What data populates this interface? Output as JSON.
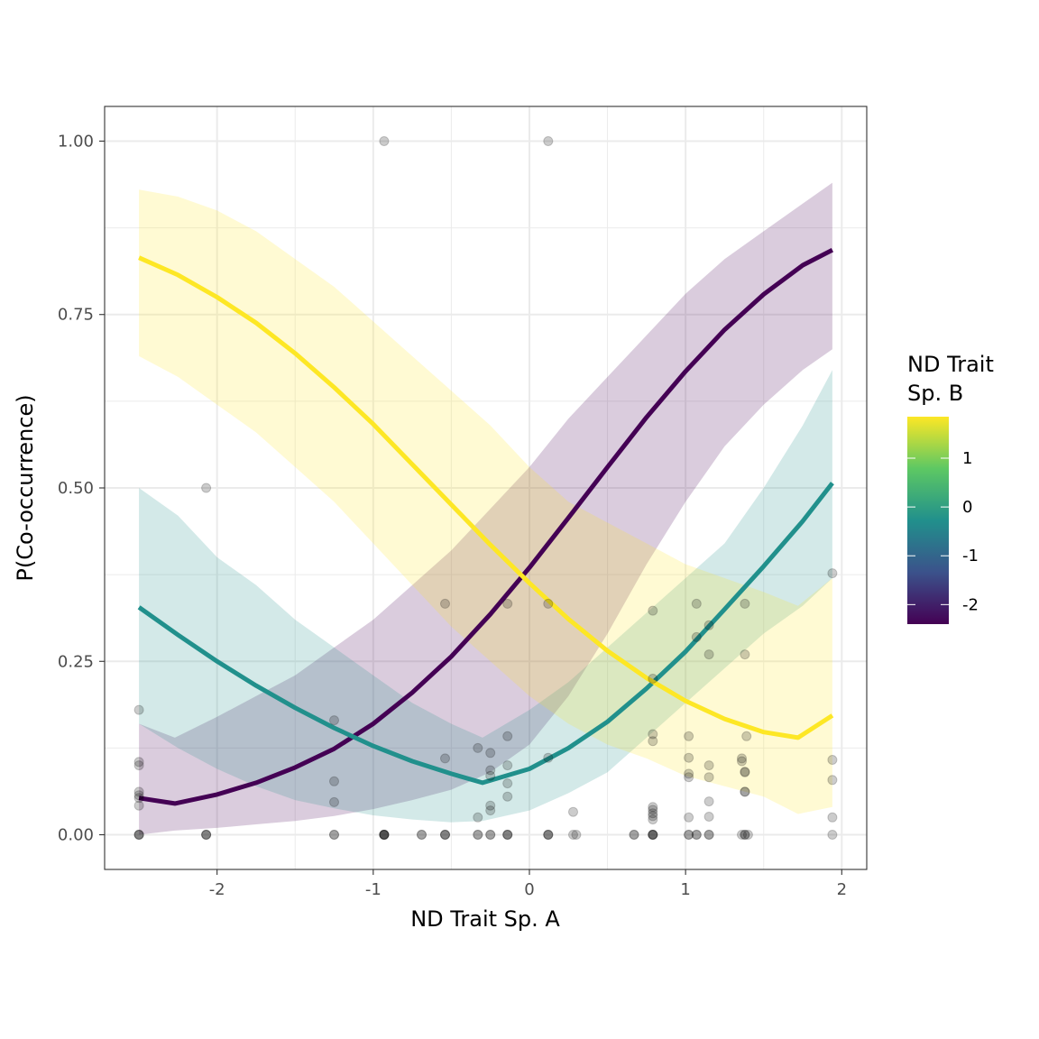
{
  "chart_data": {
    "type": "line",
    "xlabel": "ND Trait Sp. A",
    "ylabel": "P(Co-occurrence)",
    "xlim": [
      -2.72,
      2.16
    ],
    "ylim": [
      -0.05,
      1.05
    ],
    "x_ticks": [
      -2,
      -1,
      0,
      1,
      2
    ],
    "x_tick_labels": [
      "-2",
      "-1",
      "0",
      "1",
      "2"
    ],
    "y_ticks": [
      0,
      0.25,
      0.5,
      0.75,
      1.0
    ],
    "y_tick_labels": [
      "0.00",
      "0.25",
      "0.50",
      "0.75",
      "1.00"
    ],
    "grid": true,
    "legend": {
      "title_lines": [
        "ND Trait",
        "Sp. B"
      ],
      "position": "right",
      "range": [
        -2.4,
        1.85
      ],
      "ticks": [
        1,
        0,
        -1,
        -2
      ],
      "tick_labels": [
        "1",
        "0",
        "-1",
        "-2"
      ],
      "colors": [
        "#440154",
        "#3b528b",
        "#21908c",
        "#5dc863",
        "#fde725"
      ]
    },
    "series": [
      {
        "key": "low",
        "color": "#440154",
        "x": [
          -2.5,
          -2.27,
          -2.0,
          -1.75,
          -1.5,
          -1.25,
          -1.0,
          -0.75,
          -0.5,
          -0.25,
          0.0,
          0.25,
          0.5,
          0.75,
          1.0,
          1.25,
          1.5,
          1.75,
          1.94
        ],
        "y": [
          0.053,
          0.045,
          0.058,
          0.075,
          0.097,
          0.124,
          0.16,
          0.205,
          0.257,
          0.318,
          0.385,
          0.457,
          0.53,
          0.602,
          0.668,
          0.728,
          0.779,
          0.821,
          0.843
        ],
        "lower": [
          0.0,
          0.006,
          0.01,
          0.015,
          0.02,
          0.027,
          0.037,
          0.05,
          0.065,
          0.09,
          0.13,
          0.2,
          0.29,
          0.39,
          0.48,
          0.56,
          0.62,
          0.67,
          0.7
        ],
        "upper": [
          0.16,
          0.14,
          0.17,
          0.2,
          0.23,
          0.27,
          0.31,
          0.36,
          0.41,
          0.47,
          0.53,
          0.6,
          0.66,
          0.72,
          0.78,
          0.83,
          0.87,
          0.91,
          0.94
        ]
      },
      {
        "key": "mid",
        "color": "#21908c",
        "x": [
          -2.5,
          -2.25,
          -2.0,
          -1.75,
          -1.5,
          -1.25,
          -1.0,
          -0.75,
          -0.5,
          -0.3,
          0.0,
          0.25,
          0.5,
          0.75,
          1.0,
          1.25,
          1.5,
          1.75,
          1.94
        ],
        "y": [
          0.328,
          0.288,
          0.25,
          0.215,
          0.183,
          0.154,
          0.128,
          0.106,
          0.088,
          0.075,
          0.095,
          0.125,
          0.163,
          0.211,
          0.264,
          0.325,
          0.387,
          0.452,
          0.507
        ],
        "lower": [
          0.16,
          0.125,
          0.095,
          0.07,
          0.05,
          0.038,
          0.028,
          0.022,
          0.018,
          0.02,
          0.035,
          0.06,
          0.09,
          0.14,
          0.19,
          0.24,
          0.29,
          0.33,
          0.37
        ],
        "upper": [
          0.5,
          0.46,
          0.4,
          0.36,
          0.31,
          0.27,
          0.23,
          0.19,
          0.16,
          0.14,
          0.18,
          0.22,
          0.27,
          0.32,
          0.37,
          0.42,
          0.5,
          0.59,
          0.67
        ]
      },
      {
        "key": "high",
        "color": "#fde725",
        "x": [
          -2.5,
          -2.25,
          -2.0,
          -1.75,
          -1.5,
          -1.25,
          -1.0,
          -0.75,
          -0.5,
          -0.25,
          0.0,
          0.25,
          0.5,
          0.75,
          1.0,
          1.25,
          1.5,
          1.72,
          1.94
        ],
        "y": [
          0.832,
          0.807,
          0.775,
          0.738,
          0.694,
          0.645,
          0.592,
          0.534,
          0.476,
          0.418,
          0.363,
          0.311,
          0.265,
          0.226,
          0.193,
          0.167,
          0.148,
          0.14,
          0.172
        ],
        "lower": [
          0.69,
          0.66,
          0.62,
          0.58,
          0.53,
          0.48,
          0.42,
          0.36,
          0.3,
          0.25,
          0.2,
          0.16,
          0.13,
          0.11,
          0.085,
          0.07,
          0.055,
          0.03,
          0.04
        ],
        "upper": [
          0.93,
          0.92,
          0.9,
          0.87,
          0.83,
          0.79,
          0.74,
          0.69,
          0.64,
          0.59,
          0.53,
          0.48,
          0.45,
          0.42,
          0.39,
          0.37,
          0.35,
          0.33,
          0.37
        ]
      }
    ],
    "points": [
      [
        -2.5,
        0.18
      ],
      [
        -2.5,
        0.105
      ],
      [
        -2.5,
        0.1
      ],
      [
        -2.5,
        0.062
      ],
      [
        -2.5,
        0.057
      ],
      [
        -2.5,
        0.053
      ],
      [
        -2.5,
        0.042
      ],
      [
        -2.5,
        0
      ],
      [
        -2.5,
        0
      ],
      [
        -2.5,
        0
      ],
      [
        -2.07,
        0.5
      ],
      [
        -2.07,
        0
      ],
      [
        -2.07,
        0
      ],
      [
        -2.07,
        0
      ],
      [
        -1.25,
        0.165
      ],
      [
        -1.25,
        0.077
      ],
      [
        -1.25,
        0.047
      ],
      [
        -1.25,
        0
      ],
      [
        -1.25,
        0
      ],
      [
        -0.93,
        1.0
      ],
      [
        -0.93,
        0
      ],
      [
        -0.93,
        0
      ],
      [
        -0.93,
        0
      ],
      [
        -0.93,
        0
      ],
      [
        -0.93,
        0
      ],
      [
        -0.69,
        0
      ],
      [
        -0.69,
        0
      ],
      [
        -0.54,
        0.333
      ],
      [
        -0.54,
        0.11
      ],
      [
        -0.54,
        0
      ],
      [
        -0.54,
        0
      ],
      [
        -0.54,
        0
      ],
      [
        -0.33,
        0.125
      ],
      [
        -0.33,
        0.025
      ],
      [
        -0.33,
        0
      ],
      [
        -0.33,
        0
      ],
      [
        -0.25,
        0.118
      ],
      [
        -0.25,
        0.093
      ],
      [
        -0.25,
        0.085
      ],
      [
        -0.25,
        0.042
      ],
      [
        -0.25,
        0.035
      ],
      [
        -0.25,
        0
      ],
      [
        -0.25,
        0
      ],
      [
        -0.14,
        0.333
      ],
      [
        -0.14,
        0.142
      ],
      [
        -0.14,
        0.1
      ],
      [
        -0.14,
        0.074
      ],
      [
        -0.14,
        0.055
      ],
      [
        -0.14,
        0
      ],
      [
        -0.14,
        0
      ],
      [
        -0.14,
        0
      ],
      [
        0.12,
        1.0
      ],
      [
        0.12,
        0.333
      ],
      [
        0.12,
        0.111
      ],
      [
        0.12,
        0
      ],
      [
        0.12,
        0
      ],
      [
        0.12,
        0
      ],
      [
        0.28,
        0.033
      ],
      [
        0.28,
        0
      ],
      [
        0.3,
        0
      ],
      [
        0.67,
        0
      ],
      [
        0.67,
        0
      ],
      [
        0.79,
        0.323
      ],
      [
        0.79,
        0.225
      ],
      [
        0.79,
        0.145
      ],
      [
        0.79,
        0.135
      ],
      [
        0.79,
        0.04
      ],
      [
        0.79,
        0.036
      ],
      [
        0.79,
        0.031
      ],
      [
        0.79,
        0.027
      ],
      [
        0.79,
        0.022
      ],
      [
        0.79,
        0
      ],
      [
        0.79,
        0
      ],
      [
        0.79,
        0
      ],
      [
        0.79,
        0
      ],
      [
        1.02,
        0.142
      ],
      [
        1.02,
        0.111
      ],
      [
        1.02,
        0.088
      ],
      [
        1.02,
        0.083
      ],
      [
        1.02,
        0.025
      ],
      [
        1.02,
        0
      ],
      [
        1.02,
        0
      ],
      [
        1.07,
        0.333
      ],
      [
        1.07,
        0.285
      ],
      [
        1.07,
        0
      ],
      [
        1.07,
        0
      ],
      [
        1.15,
        0.302
      ],
      [
        1.15,
        0.26
      ],
      [
        1.15,
        0.1
      ],
      [
        1.15,
        0.083
      ],
      [
        1.15,
        0.048
      ],
      [
        1.15,
        0.026
      ],
      [
        1.15,
        0
      ],
      [
        1.15,
        0
      ],
      [
        1.36,
        0.11
      ],
      [
        1.36,
        0.106
      ],
      [
        1.36,
        0
      ],
      [
        1.38,
        0.333
      ],
      [
        1.38,
        0.26
      ],
      [
        1.38,
        0.091
      ],
      [
        1.38,
        0.09
      ],
      [
        1.38,
        0.062
      ],
      [
        1.38,
        0.062
      ],
      [
        1.38,
        0
      ],
      [
        1.38,
        0
      ],
      [
        1.39,
        0.142
      ],
      [
        1.4,
        0
      ],
      [
        1.94,
        0.377
      ],
      [
        1.94,
        0.108
      ],
      [
        1.94,
        0.079
      ],
      [
        1.94,
        0.025
      ],
      [
        1.94,
        0
      ]
    ]
  }
}
